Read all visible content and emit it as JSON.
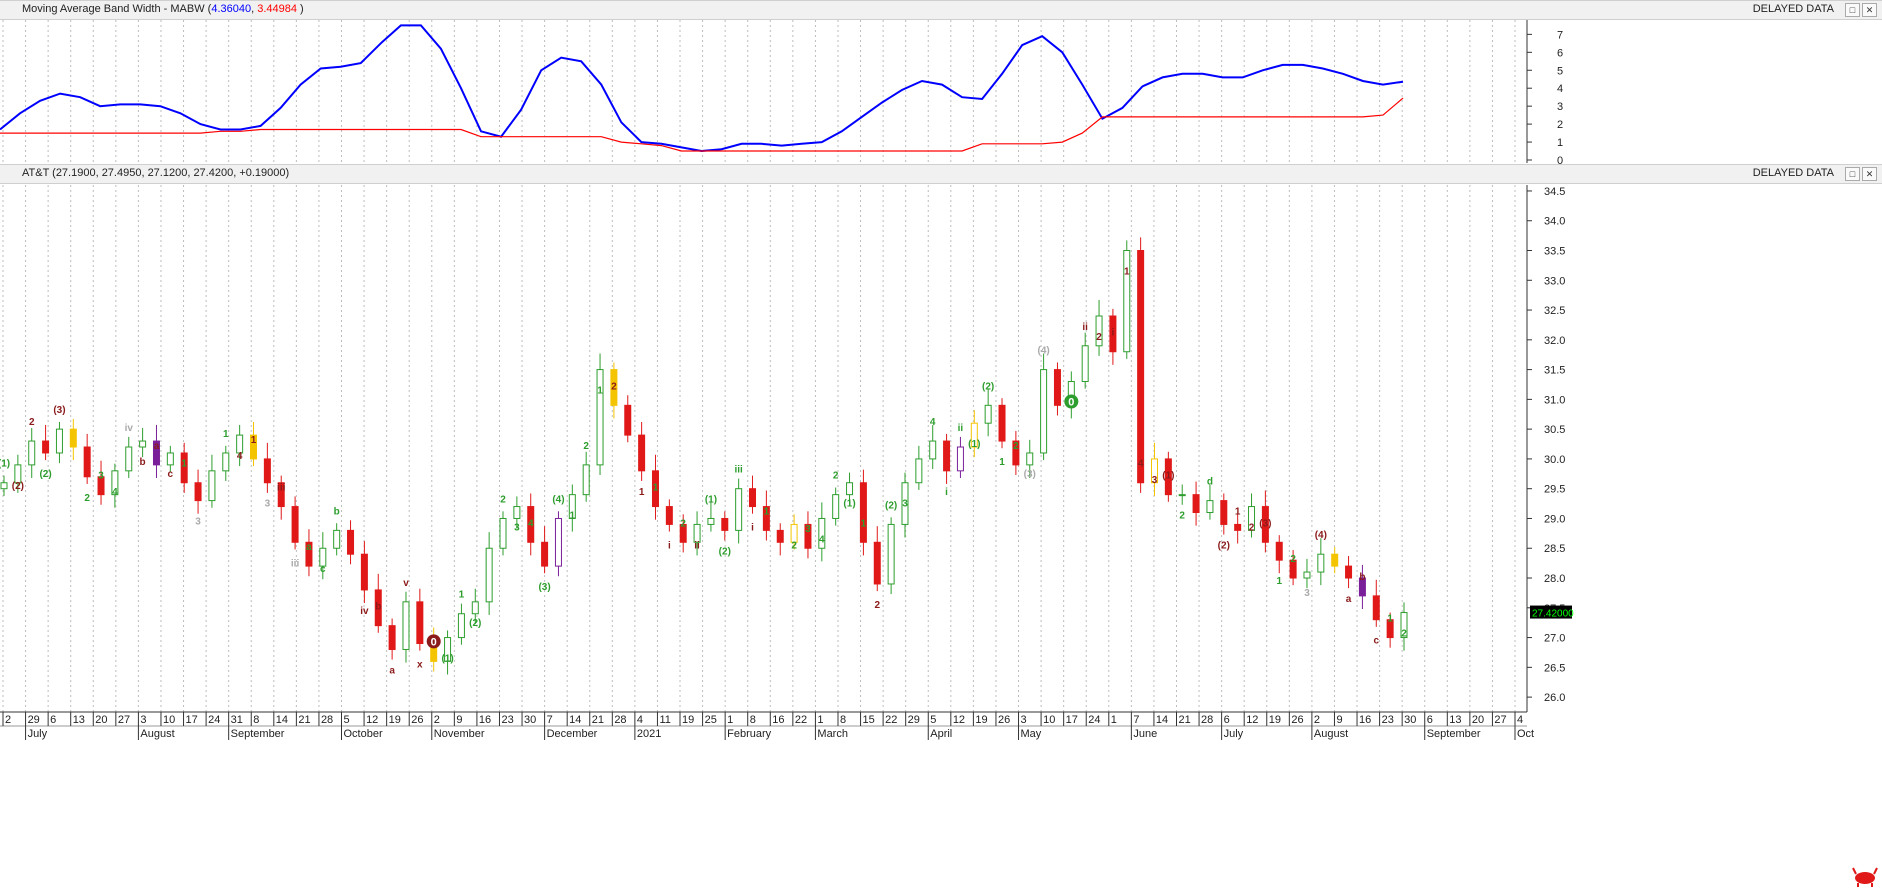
{
  "top_panel": {
    "name": "Moving Average Band Width - MABW",
    "open_paren": " (",
    "value1": "4.36040",
    "sep": ", ",
    "value2": "3.44984",
    "close_paren": " )",
    "status": "DELAYED DATA"
  },
  "price_panel": {
    "name": "AT&T (27.1900, 27.4950, 27.1200, 27.4200, +0.19000)",
    "status": "DELAYED DATA",
    "last_price": "27.42000"
  },
  "colors": {
    "blue_line": "#0000ff",
    "red_line": "#ff0000",
    "up": "#2d9e2d",
    "down": "#e01818",
    "yellow": "#f5c400",
    "purple": "#7a1f9a"
  },
  "icons": [
    "restore-icon",
    "close-icon",
    "bull-logo-icon"
  ],
  "chart_data": [
    {
      "type": "line",
      "ylim": [
        0,
        7.8
      ],
      "y_ticks": [
        "0",
        "1",
        "2",
        "3",
        "4",
        "5",
        "6",
        "7"
      ],
      "series": [
        {
          "name": "MABW",
          "color": "#0000ff",
          "values": [
            1.7,
            2.6,
            3.3,
            3.7,
            3.5,
            3.0,
            3.1,
            3.1,
            3.0,
            2.6,
            2.0,
            1.7,
            1.7,
            1.9,
            2.9,
            4.2,
            5.1,
            5.2,
            5.4,
            6.5,
            7.5,
            7.5,
            6.2,
            4.0,
            1.6,
            1.3,
            2.8,
            5.0,
            5.7,
            5.5,
            4.2,
            2.1,
            1.0,
            0.9,
            0.7,
            0.5,
            0.6,
            0.9,
            0.9,
            0.8,
            0.9,
            1.0,
            1.6,
            2.4,
            3.2,
            3.9,
            4.4,
            4.2,
            3.5,
            3.4,
            4.8,
            6.4,
            6.9,
            6.0,
            4.2,
            2.3,
            2.9,
            4.1,
            4.6,
            4.8,
            4.8,
            4.6,
            4.6,
            5.0,
            5.3,
            5.3,
            5.1,
            4.8,
            4.4,
            4.2,
            4.36
          ]
        },
        {
          "name": "Signal",
          "color": "#ff0000",
          "values": [
            1.5,
            1.5,
            1.5,
            1.5,
            1.5,
            1.5,
            1.5,
            1.5,
            1.5,
            1.5,
            1.5,
            1.6,
            1.6,
            1.7,
            1.7,
            1.7,
            1.7,
            1.7,
            1.7,
            1.7,
            1.7,
            1.7,
            1.7,
            1.7,
            1.3,
            1.3,
            1.3,
            1.3,
            1.3,
            1.3,
            1.3,
            1.0,
            0.9,
            0.8,
            0.5,
            0.5,
            0.5,
            0.5,
            0.5,
            0.5,
            0.5,
            0.5,
            0.5,
            0.5,
            0.5,
            0.5,
            0.5,
            0.5,
            0.5,
            0.9,
            0.9,
            0.9,
            0.9,
            1.0,
            1.5,
            2.4,
            2.4,
            2.4,
            2.4,
            2.4,
            2.4,
            2.4,
            2.4,
            2.4,
            2.4,
            2.4,
            2.4,
            2.4,
            2.4,
            2.5,
            3.45
          ]
        }
      ]
    },
    {
      "type": "candlestick",
      "title": "AT&T",
      "ylim": [
        25.75,
        34.6
      ],
      "y_ticks": [
        "26.0",
        "26.5",
        "27.0",
        "27.5",
        "28.0",
        "28.5",
        "29.0",
        "29.5",
        "30.0",
        "30.5",
        "31.0",
        "31.5",
        "32.0",
        "32.5",
        "33.0",
        "33.5",
        "34.0",
        "34.5"
      ],
      "closes": [
        29.6,
        29.9,
        30.3,
        30.1,
        30.5,
        30.2,
        29.7,
        29.4,
        29.8,
        30.2,
        30.3,
        29.9,
        30.1,
        29.6,
        29.3,
        29.8,
        30.1,
        30.4,
        30.0,
        29.6,
        29.2,
        28.6,
        28.2,
        28.5,
        28.8,
        28.4,
        27.8,
        27.2,
        26.8,
        27.6,
        26.9,
        26.6,
        27.0,
        27.4,
        27.6,
        28.5,
        29.0,
        29.2,
        28.6,
        28.2,
        29.0,
        29.4,
        29.9,
        31.5,
        30.9,
        30.4,
        29.8,
        29.2,
        28.9,
        28.6,
        28.9,
        29.0,
        28.8,
        29.5,
        29.2,
        28.8,
        28.6,
        28.9,
        28.5,
        29.0,
        29.4,
        29.6,
        28.6,
        27.9,
        28.9,
        29.6,
        30.0,
        30.3,
        29.8,
        30.2,
        30.6,
        30.9,
        30.3,
        29.9,
        30.1,
        31.5,
        30.9,
        31.3,
        31.9,
        32.4,
        31.8,
        33.5,
        29.6,
        30.0,
        29.4,
        29.4,
        29.1,
        29.3,
        28.9,
        28.8,
        29.2,
        28.6,
        28.3,
        28.0,
        28.1,
        28.4,
        28.2,
        28.0,
        27.7,
        27.3,
        27.0,
        27.42
      ],
      "x_tick_labels": [
        "2",
        "29",
        "6",
        "13",
        "20",
        "27",
        "3",
        "10",
        "17",
        "24",
        "31",
        "8",
        "14",
        "21",
        "28",
        "5",
        "12",
        "19",
        "26",
        "2",
        "9",
        "16",
        "23",
        "30",
        "7",
        "14",
        "21",
        "28",
        "4",
        "11",
        "19",
        "25",
        "1",
        "8",
        "16",
        "22",
        "1",
        "8",
        "15",
        "22",
        "29",
        "5",
        "12",
        "19",
        "26",
        "3",
        "10",
        "17",
        "24",
        "1",
        "7",
        "14",
        "21",
        "28",
        "6",
        "12",
        "19",
        "26",
        "2",
        "9",
        "16",
        "23",
        "30",
        "6",
        "13",
        "20",
        "27",
        "4"
      ],
      "month_labels": [
        "July",
        "August",
        "September",
        "October",
        "November",
        "December",
        "2021",
        "February",
        "March",
        "April",
        "May",
        "June",
        "July",
        "August",
        "September",
        "Oct"
      ],
      "annotations": [
        {
          "text": "(1)",
          "color": "#2d9e2d"
        },
        {
          "text": "(2)",
          "color": "#8b1a1a"
        },
        {
          "text": "2",
          "color": "#8b1a1a"
        },
        {
          "text": "(2)",
          "color": "#2d9e2d"
        },
        {
          "text": "(3)",
          "color": "#8b1a1a"
        },
        {
          "text": "2",
          "color": "#2d9e2d"
        },
        {
          "text": "3",
          "color": "#2d9e2d"
        },
        {
          "text": "4",
          "color": "#2d9e2d"
        },
        {
          "text": "iv",
          "color": "#aaaaaa"
        },
        {
          "text": "b",
          "color": "#8b1a1a"
        },
        {
          "text": "a",
          "color": "#8b1a1a"
        },
        {
          "text": "c",
          "color": "#8b1a1a"
        },
        {
          "text": "1",
          "color": "#2d9e2d"
        },
        {
          "text": "3",
          "color": "#aaaaaa"
        },
        {
          "text": "1",
          "color": "#2d9e2d"
        },
        {
          "text": "4",
          "color": "#8b1a1a"
        },
        {
          "text": "1",
          "color": "#8b1a1a"
        },
        {
          "text": "3",
          "color": "#aaaaaa"
        },
        {
          "text": "iii",
          "color": "#8b1a1a"
        },
        {
          "text": "iii",
          "color": "#aaaaaa"
        },
        {
          "text": "a",
          "color": "#2d9e2d"
        },
        {
          "text": "c",
          "color": "#2d9e2d"
        },
        {
          "text": "b",
          "color": "#2d9e2d"
        },
        {
          "text": "iv",
          "color": "#8b1a1a"
        },
        {
          "text": "b",
          "color": "#8b1a1a"
        },
        {
          "text": "a",
          "color": "#8b1a1a"
        },
        {
          "text": "v",
          "color": "#8b1a1a"
        },
        {
          "text": "x",
          "color": "#8b1a1a"
        },
        {
          "text": "0",
          "color": "#8b1a1a"
        },
        {
          "text": "(1)",
          "color": "#2d9e2d"
        },
        {
          "text": "1",
          "color": "#2d9e2d"
        },
        {
          "text": "(2)",
          "color": "#2d9e2d"
        },
        {
          "text": "2",
          "color": "#2d9e2d"
        },
        {
          "text": "3",
          "color": "#2d9e2d"
        },
        {
          "text": "4",
          "color": "#2d9e2d"
        },
        {
          "text": "(3)",
          "color": "#2d9e2d"
        },
        {
          "text": "(4)",
          "color": "#2d9e2d"
        },
        {
          "text": "1",
          "color": "#2d9e2d"
        },
        {
          "text": "2",
          "color": "#2d9e2d"
        },
        {
          "text": "1",
          "color": "#2d9e2d"
        },
        {
          "text": "2",
          "color": "#8b1a1a"
        },
        {
          "text": "1",
          "color": "#8b1a1a"
        },
        {
          "text": "1",
          "color": "#2d9e2d"
        },
        {
          "text": "i",
          "color": "#8b1a1a"
        },
        {
          "text": "2",
          "color": "#2d9e2d"
        },
        {
          "text": "ii",
          "color": "#8b1a1a"
        },
        {
          "text": "(1)",
          "color": "#2d9e2d"
        },
        {
          "text": "(2)",
          "color": "#2d9e2d"
        },
        {
          "text": "iii",
          "color": "#2d9e2d"
        },
        {
          "text": "i",
          "color": "#8b1a1a"
        },
        {
          "text": "1",
          "color": "#2d9e2d"
        },
        {
          "text": "2",
          "color": "#2d9e2d"
        },
        {
          "text": "3",
          "color": "#2d9e2d"
        },
        {
          "text": "4",
          "color": "#2d9e2d"
        },
        {
          "text": "2",
          "color": "#2d9e2d"
        },
        {
          "text": "(1)",
          "color": "#2d9e2d"
        },
        {
          "text": "1",
          "color": "#2d9e2d"
        },
        {
          "text": "2",
          "color": "#8b1a1a"
        },
        {
          "text": "(2)",
          "color": "#2d9e2d"
        },
        {
          "text": "3",
          "color": "#2d9e2d"
        },
        {
          "text": "4",
          "color": "#2d9e2d"
        },
        {
          "text": "i",
          "color": "#2d9e2d"
        },
        {
          "text": "ii",
          "color": "#2d9e2d"
        },
        {
          "text": "(1)",
          "color": "#2d9e2d"
        },
        {
          "text": "(2)",
          "color": "#2d9e2d"
        },
        {
          "text": "1",
          "color": "#2d9e2d"
        },
        {
          "text": "2",
          "color": "#2d9e2d"
        },
        {
          "text": "(3)",
          "color": "#aaaaaa"
        },
        {
          "text": "(4)",
          "color": "#aaaaaa"
        },
        {
          "text": "0",
          "color": "#2d9e2d"
        },
        {
          "text": "ii",
          "color": "#8b1a1a"
        },
        {
          "text": "2",
          "color": "#8b1a1a"
        },
        {
          "text": "i",
          "color": "#8b1a1a"
        },
        {
          "text": "1",
          "color": "#8b1a1a"
        },
        {
          "text": "4",
          "color": "#8b1a1a"
        },
        {
          "text": "3",
          "color": "#8b1a1a"
        },
        {
          "text": "(1)",
          "color": "#8b1a1a"
        },
        {
          "text": "2",
          "color": "#2d9e2d"
        },
        {
          "text": "d",
          "color": "#2d9e2d"
        },
        {
          "text": "(2)",
          "color": "#8b1a1a"
        },
        {
          "text": "1",
          "color": "#8b1a1a"
        },
        {
          "text": "2",
          "color": "#8b1a1a"
        },
        {
          "text": "(3)",
          "color": "#8b1a1a"
        },
        {
          "text": "1",
          "color": "#2d9e2d"
        },
        {
          "text": "2",
          "color": "#2d9e2d"
        },
        {
          "text": "3",
          "color": "#aaaaaa"
        },
        {
          "text": "(4)",
          "color": "#8b1a1a"
        },
        {
          "text": "a",
          "color": "#8b1a1a"
        },
        {
          "text": "b",
          "color": "#8b1a1a"
        },
        {
          "text": "c",
          "color": "#8b1a1a"
        },
        {
          "text": "1",
          "color": "#2d9e2d"
        },
        {
          "text": "2",
          "color": "#2d9e2d"
        }
      ]
    }
  ]
}
